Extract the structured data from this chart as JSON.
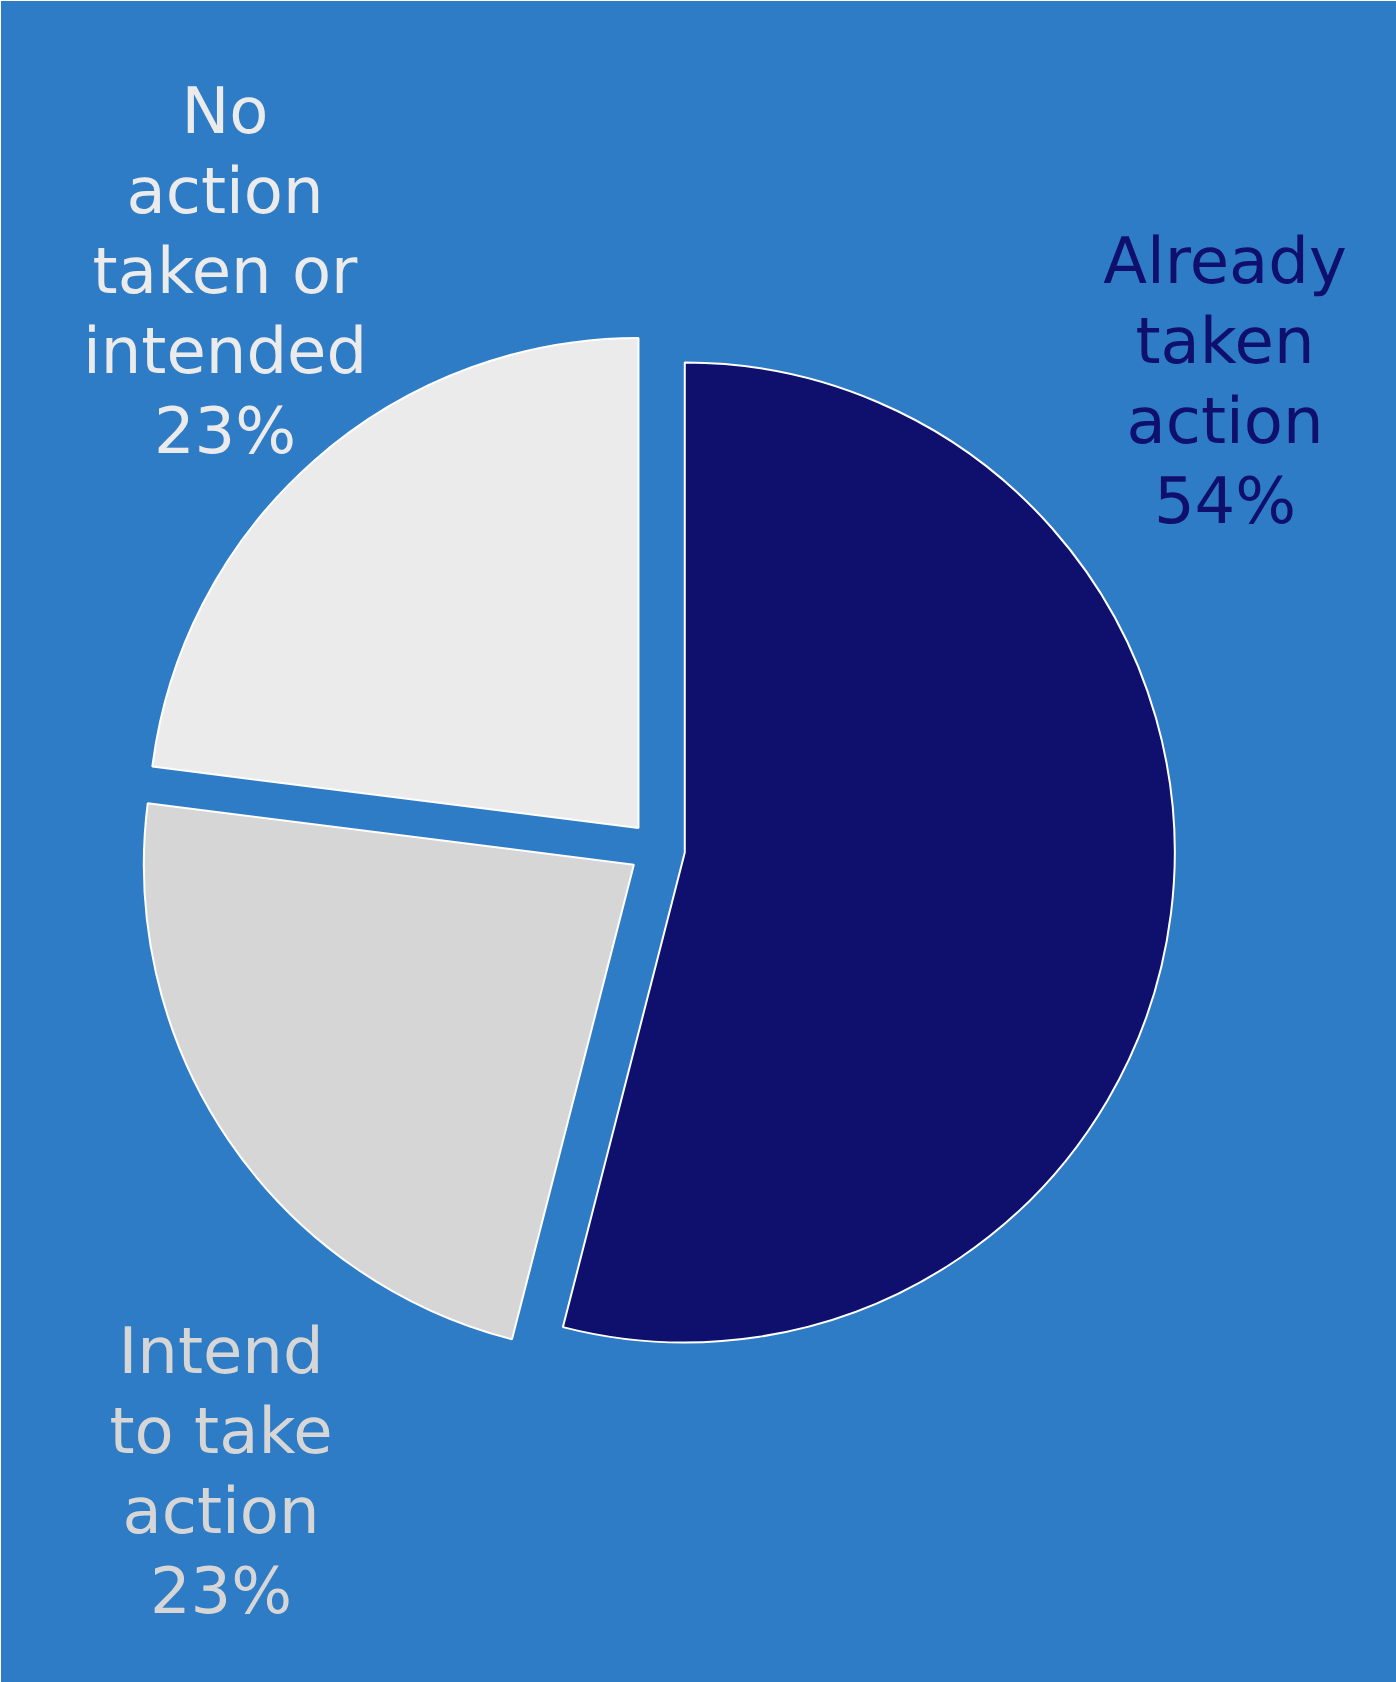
{
  "chart_data": {
    "type": "pie",
    "categories": [
      "Already taken action",
      "Intend to take action",
      "No action taken or intended"
    ],
    "values": [
      54,
      23,
      23
    ],
    "value_labels": [
      "54%",
      "23%",
      "23%"
    ],
    "colors": [
      "#0f0f6e",
      "#d6d6d6",
      "#ebebeb"
    ]
  }
}
